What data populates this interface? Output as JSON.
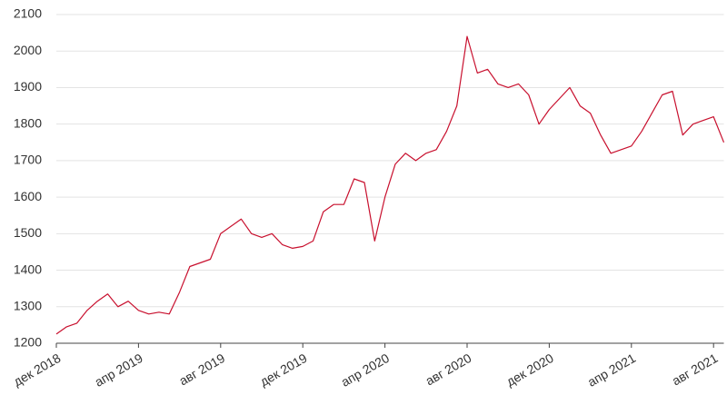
{
  "chart_data": {
    "type": "line",
    "x": [
      "дек 2018",
      null,
      null,
      null,
      null,
      null,
      null,
      null,
      "апр 2019",
      null,
      null,
      null,
      null,
      null,
      null,
      null,
      "авг 2019",
      null,
      null,
      null,
      null,
      null,
      null,
      null,
      "дек 2019",
      null,
      null,
      null,
      null,
      null,
      null,
      null,
      "апр 2020",
      null,
      null,
      null,
      null,
      null,
      null,
      null,
      "авг 2020",
      null,
      null,
      null,
      null,
      null,
      null,
      null,
      "дек 2020",
      null,
      null,
      null,
      null,
      null,
      null,
      null,
      "апр 2021",
      null,
      null,
      null,
      null,
      null,
      null,
      null,
      "авг 2021",
      null
    ],
    "series": [
      {
        "color": "#c8102e",
        "values": [
          1225,
          1245,
          1255,
          1290,
          1315,
          1335,
          1300,
          1315,
          1290,
          1280,
          1285,
          1280,
          1340,
          1410,
          1420,
          1430,
          1500,
          1520,
          1540,
          1500,
          1490,
          1500,
          1470,
          1460,
          1465,
          1480,
          1560,
          1580,
          1580,
          1650,
          1640,
          1480,
          1600,
          1690,
          1720,
          1700,
          1720,
          1730,
          1780,
          1850,
          2040,
          1940,
          1950,
          1910,
          1900,
          1910,
          1880,
          1800,
          1840,
          1870,
          1900,
          1850,
          1830,
          1770,
          1720,
          1730,
          1740,
          1780,
          1830,
          1880,
          1890,
          1770,
          1800,
          1810,
          1820,
          1750
        ]
      }
    ],
    "ylim": [
      1200,
      2100
    ],
    "yticks": [
      1200,
      1300,
      1400,
      1500,
      1600,
      1700,
      1800,
      1900,
      2000,
      2100
    ],
    "grid": true
  }
}
